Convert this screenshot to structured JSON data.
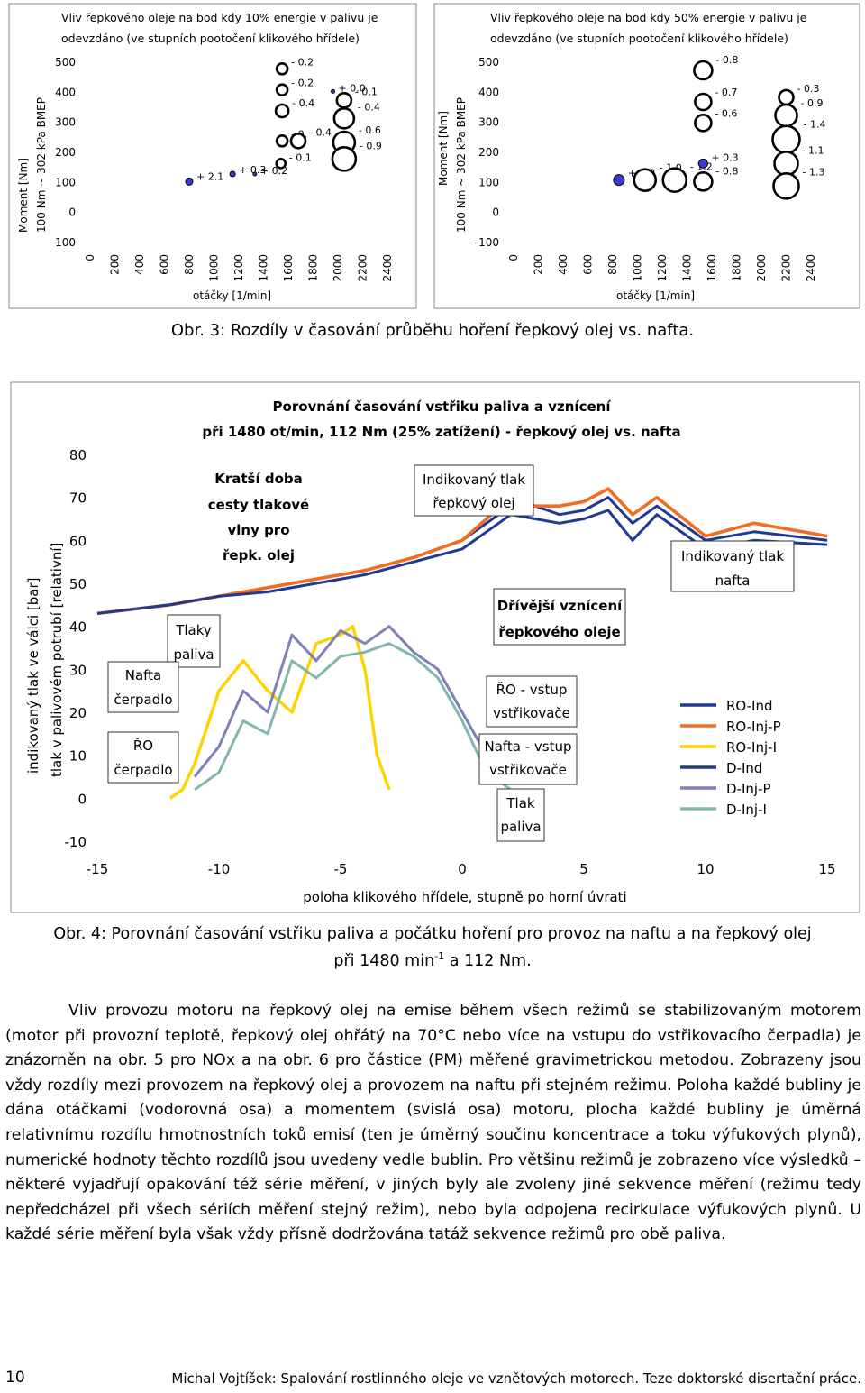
{
  "fig3": {
    "left": {
      "title_line1": "Vliv řepkového oleje na bod kdy 10% energie v palivu je",
      "title_line2": "odevzdáno (ve stupních pootočení klikového hřídele)",
      "ylabel1": "Moment [Nm]",
      "ylabel2": "100 Nm ~ 302 kPa BMEP",
      "xlabel": "otáčky [1/min]",
      "yticks": [
        "500",
        "400",
        "300",
        "200",
        "100",
        "0",
        "-100"
      ],
      "xticks": [
        "0",
        "200",
        "400",
        "600",
        "800",
        "1000",
        "1200",
        "1400",
        "1600",
        "1800",
        "2000",
        "2200",
        "2400"
      ],
      "xlim": [
        0,
        2400
      ],
      "ylim": [
        -100,
        500
      ],
      "points": [
        {
          "x": 800,
          "y": 100,
          "label": "+ 2.1",
          "r": 4,
          "positive": true
        },
        {
          "x": 1150,
          "y": 125,
          "label": "+ 0.3",
          "r": 3,
          "positive": true
        },
        {
          "x": 1330,
          "y": 125,
          "label": "+ 0.2",
          "r": 2,
          "positive": true
        },
        {
          "x": 1550,
          "y": 475,
          "label": "- 0.2",
          "r": 6,
          "positive": false
        },
        {
          "x": 1550,
          "y": 405,
          "label": "- 0.2",
          "r": 6,
          "positive": false
        },
        {
          "x": 1550,
          "y": 335,
          "label": "- 0.4",
          "r": 7,
          "positive": false
        },
        {
          "x": 1550,
          "y": 235,
          "label": "- 0.",
          "r": 6,
          "positive": false
        },
        {
          "x": 1680,
          "y": 235,
          "label": "- 0.4",
          "r": 8,
          "positive": false
        },
        {
          "x": 1540,
          "y": 160,
          "label": "- 0.1",
          "r": 5,
          "positive": false
        },
        {
          "x": 1960,
          "y": 400,
          "label": "+ 0.0",
          "r": 2,
          "positive": true
        },
        {
          "x": 2050,
          "y": 370,
          "label": "- 0.1",
          "r": 8,
          "positive": false
        },
        {
          "x": 2050,
          "y": 310,
          "label": "- 0.4",
          "r": 11,
          "positive": false
        },
        {
          "x": 2050,
          "y": 230,
          "label": "- 0.6",
          "r": 12,
          "positive": false
        },
        {
          "x": 2050,
          "y": 175,
          "label": "- 0.9",
          "r": 13,
          "positive": false
        }
      ]
    },
    "right": {
      "title_line1": "Vliv řepkového oleje na bod kdy 50% energie v palivu je",
      "title_line2": "odevzdáno (ve stupních pootočení klikového hřídele)",
      "ylabel1": "Moment [Nm]",
      "ylabel2": "100 Nm ~ 302 kPa BMEP",
      "xlabel": "otáčky [1/min]",
      "yticks": [
        "500",
        "400",
        "300",
        "200",
        "100",
        "0",
        "-100"
      ],
      "xticks": [
        "0",
        "200",
        "400",
        "600",
        "800",
        "1000",
        "1200",
        "1400",
        "1600",
        "1800",
        "2000",
        "2200",
        "2400"
      ],
      "xlim": [
        0,
        2400
      ],
      "ylim": [
        -100,
        500
      ],
      "points": [
        {
          "x": 850,
          "y": 105,
          "label": "+ 2.0",
          "r": 6,
          "positive": true
        },
        {
          "x": 1060,
          "y": 105,
          "label": "- 1.0",
          "r": 12,
          "positive": false
        },
        {
          "x": 1300,
          "y": 105,
          "label": "- 1.2",
          "r": 13,
          "positive": false
        },
        {
          "x": 1530,
          "y": 470,
          "label": "- 0.8",
          "r": 10,
          "positive": false
        },
        {
          "x": 1530,
          "y": 365,
          "label": "- 0.7",
          "r": 9,
          "positive": false
        },
        {
          "x": 1530,
          "y": 295,
          "label": "- 0.6",
          "r": 9,
          "positive": false
        },
        {
          "x": 1530,
          "y": 160,
          "label": "+ 0.3",
          "r": 5,
          "positive": true
        },
        {
          "x": 1530,
          "y": 100,
          "label": "- 0.8",
          "r": 10,
          "positive": false
        },
        {
          "x": 2200,
          "y": 380,
          "label": "- 0.3",
          "r": 8,
          "positive": false
        },
        {
          "x": 2200,
          "y": 320,
          "label": "- 0.9",
          "r": 12,
          "positive": false
        },
        {
          "x": 2200,
          "y": 240,
          "label": "- 1.4",
          "r": 15,
          "positive": false
        },
        {
          "x": 2200,
          "y": 160,
          "label": "- 1.1",
          "r": 13,
          "positive": false
        },
        {
          "x": 2200,
          "y": 85,
          "label": "- 1.3",
          "r": 14,
          "positive": false
        }
      ]
    },
    "caption": "Obr. 3: Rozdíly v časování průběhu hoření řepkový olej vs. nafta."
  },
  "fig4": {
    "title_line1": "Porovnání časování vstřiku paliva a vznícení",
    "title_line2": "při 1480 ot/min, 112 Nm (25% zatížení) - řepkový olej vs. nafta",
    "ylabel1": "indikovaný tlak ve válci [bar]",
    "ylabel2": "tlak v palivovém potrubí [relativní]",
    "xlabel": "poloha klikového hřídele, stupně po horní úvrati",
    "xticks": [
      "-15",
      "-10",
      "-5",
      "0",
      "5",
      "10",
      "15"
    ],
    "yticks": [
      "80",
      "70",
      "60",
      "50",
      "40",
      "30",
      "20",
      "10",
      "0",
      "-10"
    ],
    "xlim": [
      -15,
      15
    ],
    "ylim": [
      -10,
      80
    ],
    "annotations": {
      "kratsi_1": "Kratší doba",
      "kratsi_2": "cesty tlakové",
      "kratsi_3": "vlny pro",
      "kratsi_4": "řepk. olej",
      "ind_rep_1": "Indikovaný tlak",
      "ind_rep_2": "řepkový olej",
      "ind_naf_1": "Indikovaný tlak",
      "ind_naf_2": "nafta",
      "drivejsi_1": "Dřívější vznícení",
      "drivejsi_2": "řepkového oleje",
      "tlaky_1": "Tlaky",
      "tlaky_2": "paliva",
      "nafta_cerp_1": "Nafta",
      "nafta_cerp_2": "čerpadlo",
      "ro_cerp_1": "ŘO",
      "ro_cerp_2": "čerpadlo",
      "ro_vstup_1": "ŘO - vstup",
      "ro_vstup_2": "vstřikovače",
      "nafta_vstup_1": "Nafta - vstup",
      "nafta_vstup_2": "vstřikovače",
      "tlak_paliva_1": "Tlak",
      "tlak_paliva_2": "paliva"
    },
    "legend": [
      {
        "name": "RO-Ind",
        "color": "#1f3a93"
      },
      {
        "name": "RO-Inj-P",
        "color": "#f26d21"
      },
      {
        "name": "RO-Inj-I",
        "color": "#ffd200"
      },
      {
        "name": "D-Ind",
        "color": "#1f3a93"
      },
      {
        "name": "D-Inj-P",
        "color": "#8080b8"
      },
      {
        "name": "D-Inj-I",
        "color": "#80b8b0"
      }
    ],
    "caption_line1": "Obr. 4: Porovnání časování vstřiku paliva a počátku hoření pro provoz na naftu a na řepkový olej",
    "caption_line2_a": "při 1480 min",
    "caption_line2_sup": "-1",
    "caption_line2_b": " a 112 Nm."
  },
  "chart_data": [
    {
      "type": "scatter",
      "title": "Vliv řepkového oleje na bod kdy 10% energie v palivu je odevzdáno (ve stupních pootočení klikového hřídele)",
      "xlabel": "otáčky [1/min]",
      "ylabel": "Moment [Nm] 100 Nm ~ 302 kPa BMEP",
      "xlim": [
        0,
        2400
      ],
      "ylim": [
        -100,
        500
      ]
    },
    {
      "type": "scatter",
      "title": "Vliv řepkového oleje na bod kdy 50% energie v palivu je odevzdáno (ve stupních pootočení klikového hřídele)",
      "xlabel": "otáčky [1/min]",
      "ylabel": "Moment [Nm] 100 Nm ~ 302 kPa BMEP",
      "xlim": [
        0,
        2400
      ],
      "ylim": [
        -100,
        500
      ]
    },
    {
      "type": "line",
      "title": "Porovnání časování vstřiku paliva a vznícení při 1480 ot/min, 112 Nm (25% zatížení) - řepkový olej vs. nafta",
      "xlabel": "poloha klikového hřídele, stupně po horní úvrati",
      "ylabel": "indikovaný tlak ve válci [bar] / tlak v palivovém potrubí [relativní]",
      "xlim": [
        -15,
        15
      ],
      "ylim": [
        -10,
        80
      ],
      "series": [
        {
          "name": "RO-Ind",
          "x": [
            -15,
            -12,
            -10,
            -8,
            -6,
            -4,
            -2,
            0,
            1,
            2,
            3,
            4,
            5,
            6,
            7,
            8,
            10,
            12,
            15
          ],
          "y": [
            43,
            45,
            47,
            49,
            51,
            53,
            56,
            60,
            64,
            68,
            68,
            66,
            67,
            70,
            64,
            68,
            60,
            62,
            60
          ]
        },
        {
          "name": "RO-Inj-P",
          "x": [
            -15,
            -12,
            -10,
            -8,
            -6,
            -4,
            -2,
            0,
            1,
            2,
            3,
            4,
            5,
            6,
            7,
            8,
            10,
            12,
            15
          ],
          "y": [
            43,
            45,
            47,
            49,
            51,
            53,
            56,
            60,
            65,
            70,
            68,
            68,
            69,
            72,
            66,
            70,
            61,
            64,
            61
          ]
        },
        {
          "name": "RO-Inj-I",
          "x": [
            -12,
            -11.5,
            -11,
            -10,
            -9,
            -8,
            -7,
            -6,
            -5,
            -4.5,
            -4,
            -3.5,
            -3
          ],
          "y": [
            0,
            2,
            8,
            25,
            32,
            25,
            20,
            36,
            38,
            40,
            30,
            10,
            2
          ]
        },
        {
          "name": "D-Ind",
          "x": [
            -15,
            -12,
            -10,
            -8,
            -6,
            -4,
            -2,
            0,
            1,
            2,
            3,
            4,
            5,
            6,
            7,
            8,
            10,
            12,
            15
          ],
          "y": [
            43,
            45,
            47,
            48,
            50,
            52,
            55,
            58,
            62,
            66,
            65,
            64,
            65,
            67,
            60,
            66,
            58,
            60,
            59
          ]
        },
        {
          "name": "D-Inj-P",
          "x": [
            -11,
            -10,
            -9,
            -8,
            -7,
            -6,
            -5,
            -4,
            -3,
            -2,
            -1,
            0,
            1,
            2
          ],
          "y": [
            5,
            12,
            25,
            20,
            38,
            32,
            39,
            36,
            40,
            34,
            30,
            20,
            10,
            4
          ]
        },
        {
          "name": "D-Inj-I",
          "x": [
            -11,
            -10,
            -9,
            -8,
            -7,
            -6,
            -5,
            -4,
            -3,
            -2,
            -1,
            0,
            1,
            2
          ],
          "y": [
            2,
            6,
            18,
            15,
            32,
            28,
            33,
            34,
            36,
            33,
            28,
            18,
            6,
            2
          ]
        }
      ]
    }
  ],
  "body": {
    "paragraph": "Vliv provozu motoru na řepkový olej na emise během všech režimů se stabilizovaným motorem (motor při provozní teplotě, řepkový olej ohřátý na 70°C nebo více na vstupu do vstřikovacího čerpadla) je znázorněn na obr. 5 pro NOx a na obr. 6 pro částice (PM) měřené gravimetrickou metodou. Zobrazeny jsou vždy rozdíly mezi provozem na řepkový olej a provozem na naftu při stejném režimu. Poloha každé bubliny je dána otáčkami (vodorovná osa) a momentem (svislá osa) motoru, plocha každé bubliny je úměrná relativnímu rozdílu hmotnostních toků emisí (ten je úměrný součinu koncentrace a toku výfukových plynů), numerické hodnoty těchto rozdílů jsou uvedeny vedle bublin. Pro většinu režimů je zobrazeno více výsledků – některé vyjadřují opakování též série měření, v jiných byly ale zvoleny jiné sekvence měření (režimu tedy nepředcházel při všech sériích měření stejný režim), nebo byla odpojena recirkulace výfukových plynů. U každé série měření byla však vždy přísně dodržována tatáž sekvence režimů pro obě paliva."
  },
  "footer": {
    "page_number": "10",
    "text": "Michal Vojtíšek: Spalování rostlinného oleje ve vznětových motorech. Teze doktorské disertační práce."
  }
}
